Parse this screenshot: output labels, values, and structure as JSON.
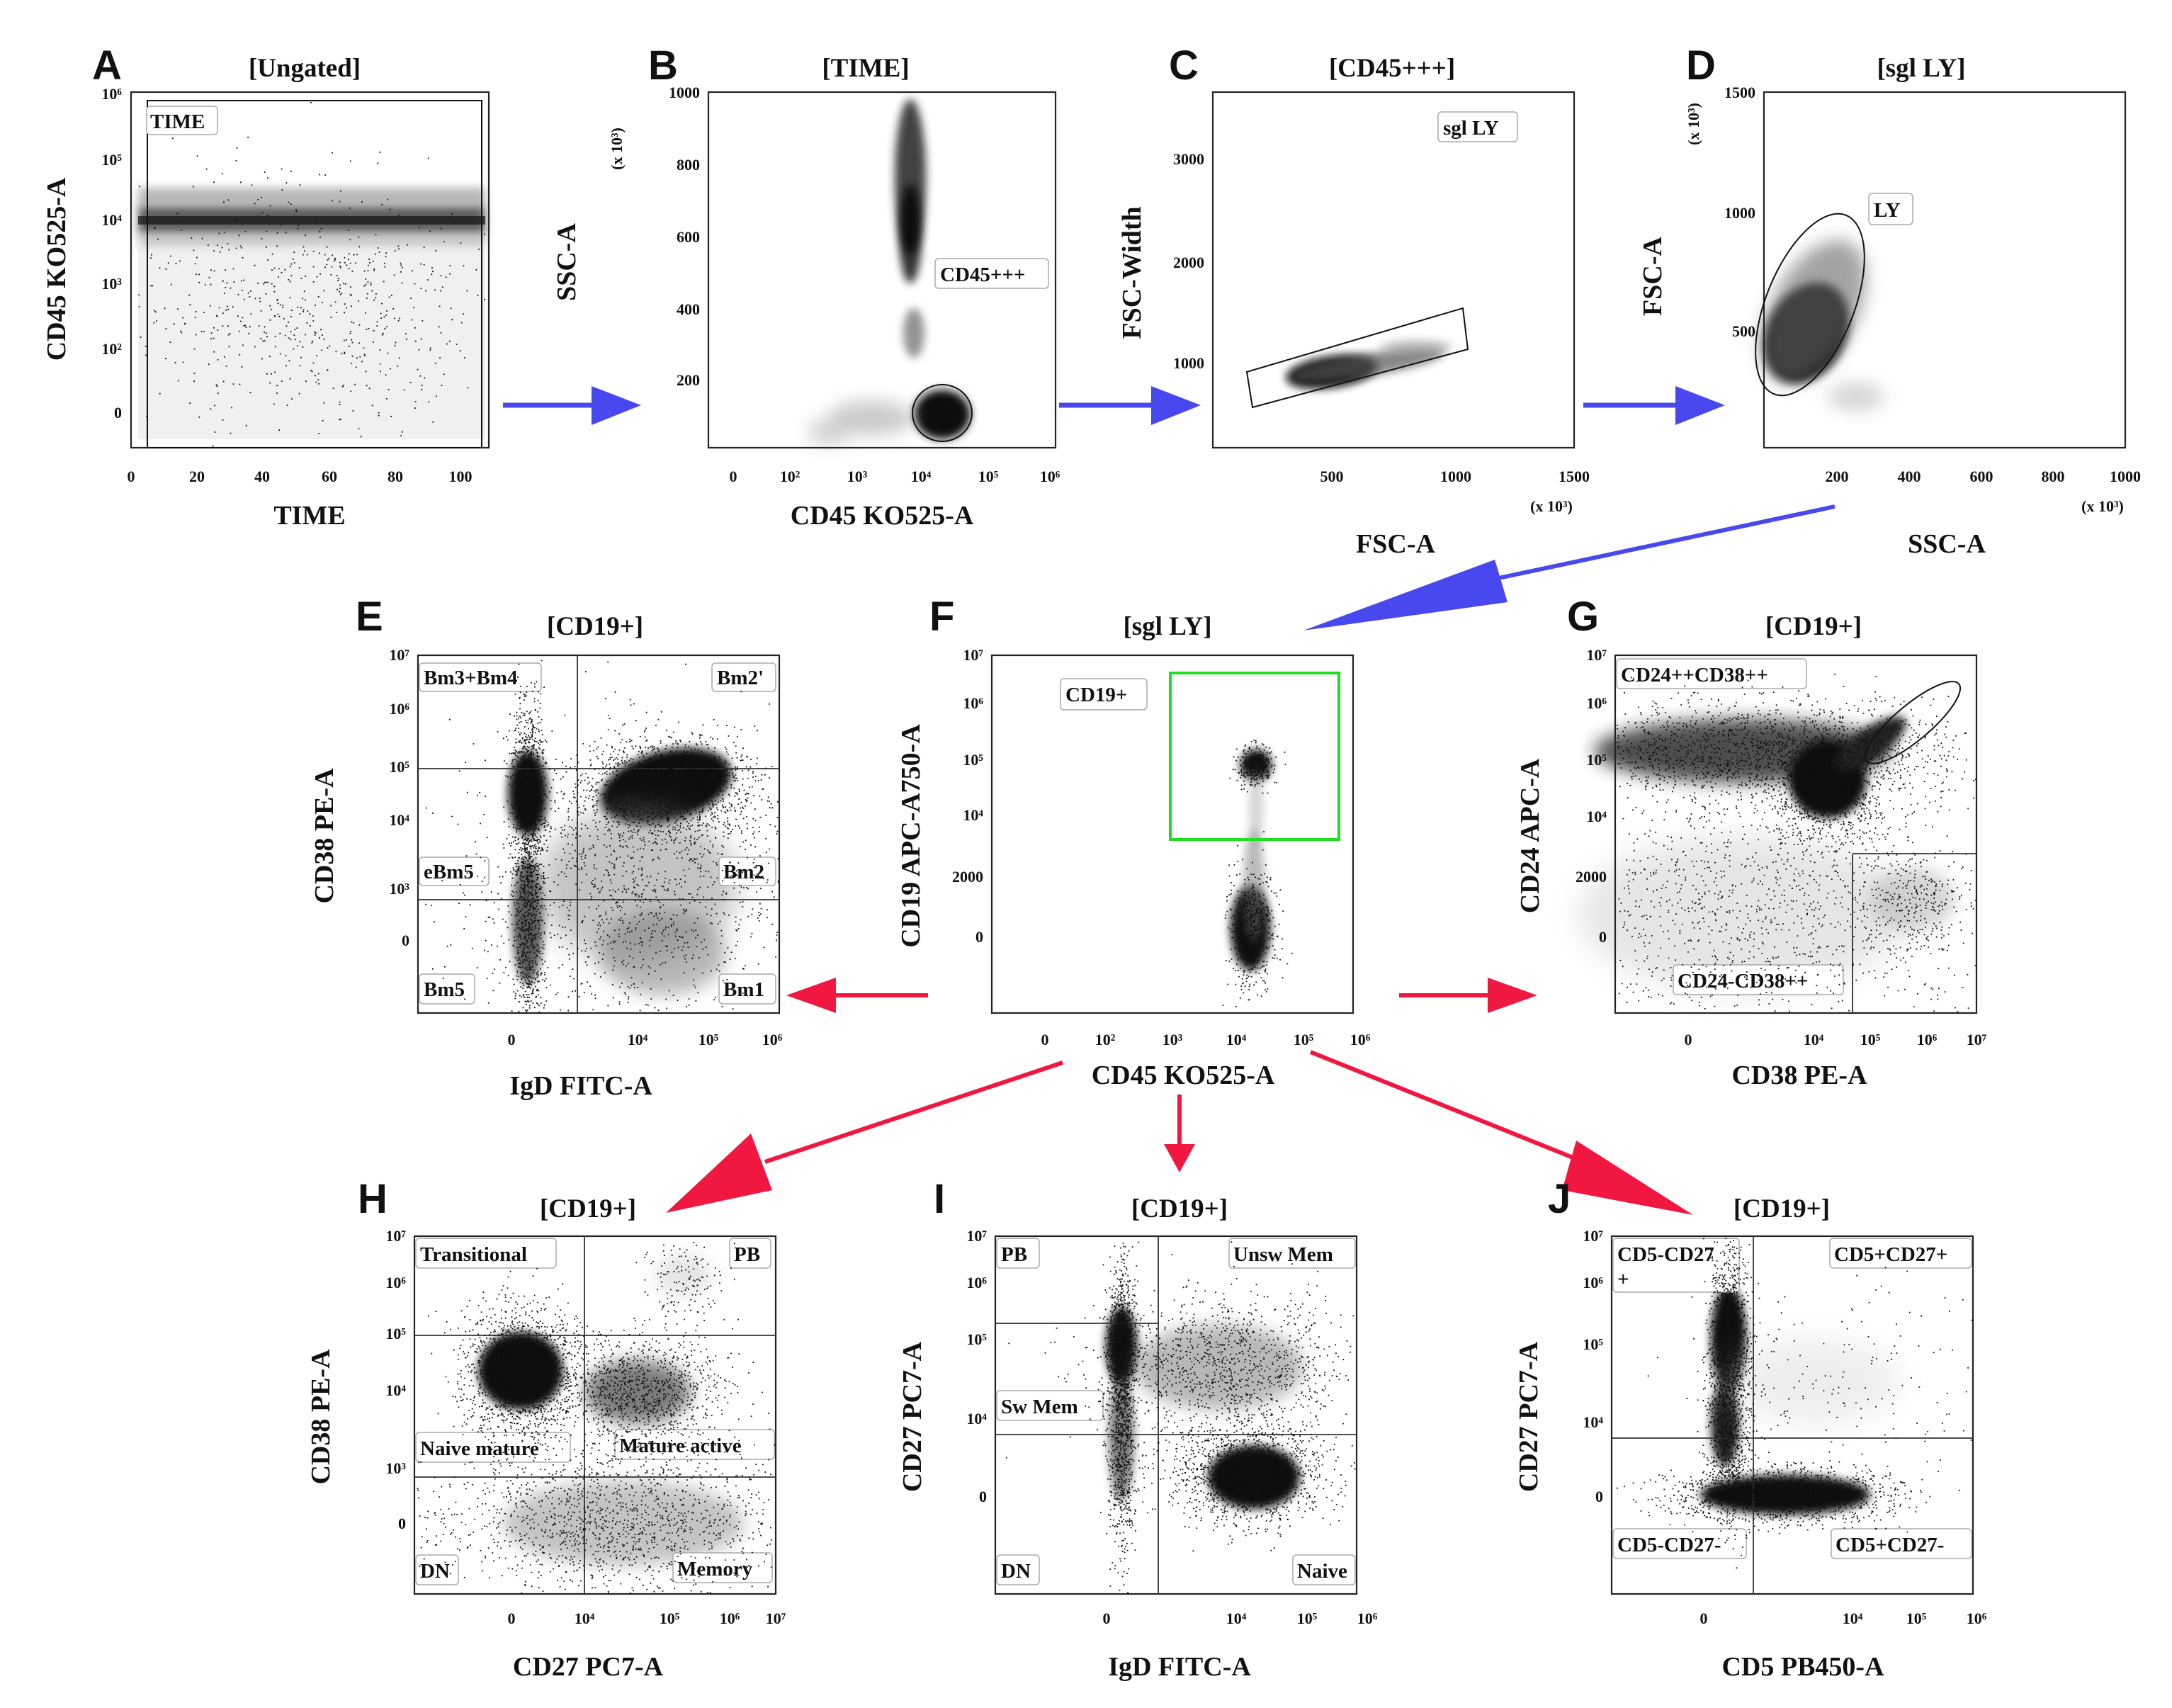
{
  "figure": "flow cytometry gating strategy",
  "colors": {
    "blue_arrow": "#4848ee",
    "red_arrow": "#f01840",
    "cd19_gate": "#22dd22",
    "dots": "#111111"
  },
  "panels": {
    "A": {
      "label": "A",
      "title": "[Ungated]",
      "xlabel": "TIME",
      "ylabel": "CD45 KO525-A",
      "xticks": [
        "0",
        "20",
        "40",
        "60",
        "80",
        "100"
      ],
      "yticks": [
        "10⁶",
        "10⁵",
        "10⁴",
        "10³",
        "10²",
        "0"
      ],
      "gates": [
        "TIME"
      ]
    },
    "B": {
      "label": "B",
      "title": "[TIME]",
      "xlabel": "CD45 KO525-A",
      "ylabel": "SSC-A",
      "yscale": "(x 10³)",
      "xticks": [
        "0",
        "10²",
        "10³",
        "10⁴",
        "10⁵",
        "10⁶"
      ],
      "yticks": [
        "1000",
        "800",
        "600",
        "400",
        "200"
      ],
      "gates": [
        "CD45+++"
      ]
    },
    "C": {
      "label": "C",
      "title": "[CD45+++]",
      "xlabel": "FSC-A",
      "ylabel": "FSC-Width",
      "xscale": "(x 10³)",
      "xticks": [
        "500",
        "1000",
        "1500"
      ],
      "yticks": [
        "3000",
        "2000",
        "1000"
      ],
      "gates": [
        "sgl LY"
      ]
    },
    "D": {
      "label": "D",
      "title": "[sgl LY]",
      "xlabel": "SSC-A",
      "ylabel": "FSC-A",
      "yscale": "(x 10³)",
      "xscale": "(x 10³)",
      "xticks": [
        "200",
        "400",
        "600",
        "800",
        "1000"
      ],
      "yticks": [
        "1500",
        "1000",
        "500"
      ],
      "gates": [
        "LY"
      ]
    },
    "E": {
      "label": "E",
      "title": "[CD19+]",
      "xlabel": "IgD FITC-A",
      "ylabel": "CD38 PE-A",
      "xticks": [
        "0",
        "10⁴",
        "10⁵",
        "10⁶"
      ],
      "yticks": [
        "10⁷",
        "10⁶",
        "10⁵",
        "10⁴",
        "10³",
        "0"
      ],
      "gates": [
        "Bm3+Bm4",
        "Bm2'",
        "eBm5",
        "Bm2",
        "Bm5",
        "Bm1"
      ]
    },
    "F": {
      "label": "F",
      "title": "[sgl LY]",
      "xlabel": "CD45 KO525-A",
      "ylabel": "CD19 APC-A750-A",
      "xticks": [
        "0",
        "10²",
        "10³",
        "10⁴",
        "10⁵",
        "10⁶"
      ],
      "yticks": [
        "10⁷",
        "10⁶",
        "10⁵",
        "10⁴",
        "2000",
        "0"
      ],
      "gates": [
        "CD19+"
      ]
    },
    "G": {
      "label": "G",
      "title": "[CD19+]",
      "xlabel": "CD38 PE-A",
      "ylabel": "CD24 APC-A",
      "xticks": [
        "0",
        "10⁴",
        "10⁵",
        "10⁶",
        "10⁷"
      ],
      "yticks": [
        "10⁷",
        "10⁶",
        "10⁵",
        "10⁴",
        "2000",
        "0"
      ],
      "gates": [
        "CD24++CD38++",
        "CD24-CD38++"
      ]
    },
    "H": {
      "label": "H",
      "title": "[CD19+]",
      "xlabel": "CD27 PC7-A",
      "ylabel": "CD38 PE-A",
      "xticks": [
        "0",
        "10⁴",
        "10⁵",
        "10⁶",
        "10⁷"
      ],
      "yticks": [
        "10⁷",
        "10⁶",
        "10⁵",
        "10⁴",
        "10³",
        "0"
      ],
      "gates": [
        "Transitional",
        "PB",
        "Naive mature",
        "Mature active",
        "DN",
        "Memory"
      ]
    },
    "I": {
      "label": "I",
      "title": "[CD19+]",
      "xlabel": "IgD FITC-A",
      "ylabel": "CD27 PC7-A",
      "xticks": [
        "0",
        "10⁴",
        "10⁵",
        "10⁶"
      ],
      "yticks": [
        "10⁷",
        "10⁶",
        "10⁵",
        "10⁴",
        "0"
      ],
      "gates": [
        "PB",
        "Unsw Mem",
        "Sw Mem",
        "DN",
        "Naive"
      ]
    },
    "J": {
      "label": "J",
      "title": "[CD19+]",
      "xlabel": "CD5 PB450-A",
      "ylabel": "CD27 PC7-A",
      "xticks": [
        "0",
        "10⁴",
        "10⁵",
        "10⁶"
      ],
      "yticks": [
        "10⁷",
        "10⁶",
        "10⁵",
        "10⁴",
        "0"
      ],
      "gates": [
        "CD5-CD27",
        "+",
        "CD5+CD27+",
        "CD5-CD27-",
        "CD5+CD27-"
      ]
    }
  }
}
